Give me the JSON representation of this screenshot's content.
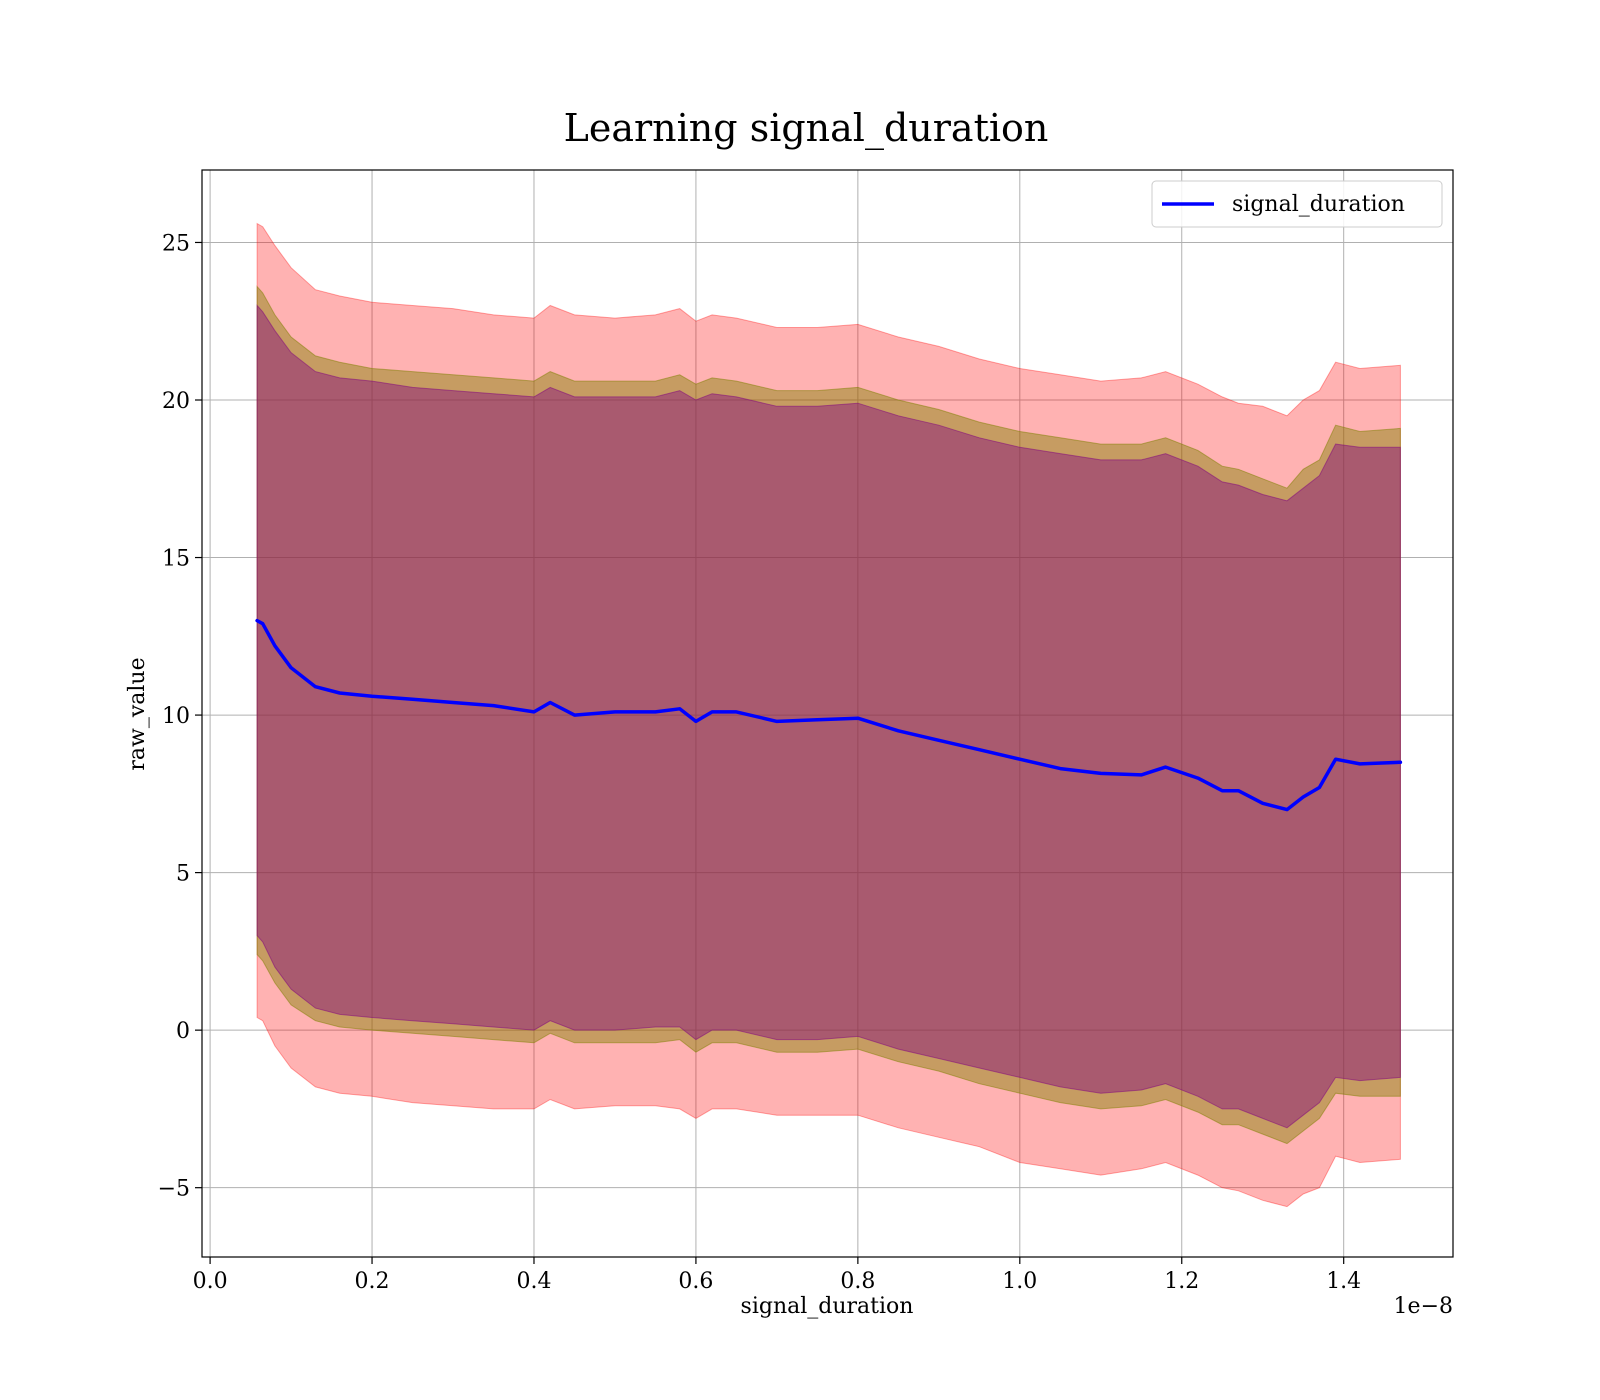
{
  "chart_data": {
    "type": "line",
    "title": "Learning signal_duration",
    "xlabel": "signal_duration",
    "ylabel": "raw_value",
    "x_offset_label": "1e−8",
    "x_tick_labels": [
      "0.0",
      "0.2",
      "0.4",
      "0.6",
      "0.8",
      "1.0",
      "1.2",
      "1.4"
    ],
    "y_tick_labels": [
      "−5",
      "0",
      "5",
      "10",
      "15",
      "20",
      "25"
    ],
    "xlim": [
      -0.01,
      1.535
    ],
    "ylim": [
      -7.2,
      27.3
    ],
    "x_ticks": [
      0.0,
      0.2,
      0.4,
      0.6,
      0.8,
      1.0,
      1.2,
      1.4
    ],
    "y_ticks": [
      -5,
      0,
      5,
      10,
      15,
      20,
      25
    ],
    "grid": true,
    "legend": {
      "placement": "top-right",
      "entries": [
        "signal_duration"
      ]
    },
    "colors": {
      "line": "#0000ff",
      "outer_band": "#ff0000",
      "middle_band": "#808000",
      "inner_band": "#800080"
    },
    "x": [
      0.058,
      0.065,
      0.08,
      0.1,
      0.13,
      0.16,
      0.2,
      0.25,
      0.3,
      0.35,
      0.4,
      0.42,
      0.45,
      0.5,
      0.55,
      0.58,
      0.6,
      0.62,
      0.65,
      0.7,
      0.75,
      0.8,
      0.85,
      0.9,
      0.95,
      1.0,
      1.05,
      1.1,
      1.15,
      1.18,
      1.22,
      1.25,
      1.27,
      1.3,
      1.33,
      1.35,
      1.37,
      1.39,
      1.42,
      1.47
    ],
    "series": [
      {
        "name": "signal_duration",
        "values": [
          13.0,
          12.9,
          12.2,
          11.5,
          10.9,
          10.7,
          10.6,
          10.5,
          10.4,
          10.3,
          10.1,
          10.4,
          10.0,
          10.1,
          10.1,
          10.2,
          9.8,
          10.1,
          10.1,
          9.8,
          9.85,
          9.9,
          9.5,
          9.2,
          8.9,
          8.6,
          8.3,
          8.15,
          8.1,
          8.35,
          8.0,
          7.6,
          7.6,
          7.2,
          7.0,
          7.4,
          7.7,
          8.6,
          8.45,
          8.5
        ],
        "band_outer_upper": [
          25.6,
          25.5,
          24.9,
          24.2,
          23.5,
          23.3,
          23.1,
          23.0,
          22.9,
          22.7,
          22.6,
          23.0,
          22.7,
          22.6,
          22.7,
          22.9,
          22.5,
          22.7,
          22.6,
          22.3,
          22.3,
          22.4,
          22.0,
          21.7,
          21.3,
          21.0,
          20.8,
          20.6,
          20.7,
          20.9,
          20.5,
          20.1,
          19.9,
          19.8,
          19.5,
          20.0,
          20.3,
          21.2,
          21.0,
          21.1
        ],
        "band_outer_lower": [
          0.4,
          0.3,
          -0.5,
          -1.2,
          -1.8,
          -2.0,
          -2.1,
          -2.3,
          -2.4,
          -2.5,
          -2.5,
          -2.2,
          -2.5,
          -2.4,
          -2.4,
          -2.5,
          -2.8,
          -2.5,
          -2.5,
          -2.7,
          -2.7,
          -2.7,
          -3.1,
          -3.4,
          -3.7,
          -4.2,
          -4.4,
          -4.6,
          -4.4,
          -4.2,
          -4.6,
          -5.0,
          -5.1,
          -5.4,
          -5.6,
          -5.2,
          -5.0,
          -4.0,
          -4.2,
          -4.1
        ],
        "band_middle_upper": [
          23.6,
          23.4,
          22.7,
          22.0,
          21.4,
          21.2,
          21.0,
          20.9,
          20.8,
          20.7,
          20.6,
          20.9,
          20.6,
          20.6,
          20.6,
          20.8,
          20.5,
          20.7,
          20.6,
          20.3,
          20.3,
          20.4,
          20.0,
          19.7,
          19.3,
          19.0,
          18.8,
          18.6,
          18.6,
          18.8,
          18.4,
          17.9,
          17.8,
          17.5,
          17.2,
          17.8,
          18.1,
          19.2,
          19.0,
          19.1
        ],
        "band_middle_lower": [
          2.4,
          2.2,
          1.5,
          0.8,
          0.3,
          0.1,
          0.0,
          -0.1,
          -0.2,
          -0.3,
          -0.4,
          -0.1,
          -0.4,
          -0.4,
          -0.4,
          -0.3,
          -0.7,
          -0.4,
          -0.4,
          -0.7,
          -0.7,
          -0.6,
          -1.0,
          -1.3,
          -1.7,
          -2.0,
          -2.3,
          -2.5,
          -2.4,
          -2.2,
          -2.6,
          -3.0,
          -3.0,
          -3.3,
          -3.6,
          -3.2,
          -2.8,
          -2.0,
          -2.1,
          -2.1
        ],
        "band_inner_upper": [
          23.0,
          22.8,
          22.2,
          21.5,
          20.9,
          20.7,
          20.6,
          20.4,
          20.3,
          20.2,
          20.1,
          20.4,
          20.1,
          20.1,
          20.1,
          20.3,
          20.0,
          20.2,
          20.1,
          19.8,
          19.8,
          19.9,
          19.5,
          19.2,
          18.8,
          18.5,
          18.3,
          18.1,
          18.1,
          18.3,
          17.9,
          17.4,
          17.3,
          17.0,
          16.8,
          17.2,
          17.6,
          18.6,
          18.5,
          18.5
        ],
        "band_inner_lower": [
          3.0,
          2.8,
          2.0,
          1.3,
          0.7,
          0.5,
          0.4,
          0.3,
          0.2,
          0.1,
          0.0,
          0.3,
          0.0,
          0.0,
          0.1,
          0.1,
          -0.3,
          0.0,
          0.0,
          -0.3,
          -0.3,
          -0.2,
          -0.6,
          -0.9,
          -1.2,
          -1.5,
          -1.8,
          -2.0,
          -1.9,
          -1.7,
          -2.1,
          -2.5,
          -2.5,
          -2.8,
          -3.1,
          -2.7,
          -2.3,
          -1.5,
          -1.6,
          -1.5
        ]
      }
    ]
  }
}
